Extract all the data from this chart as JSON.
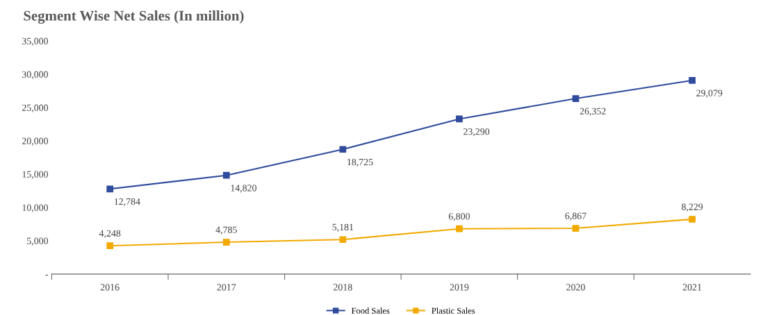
{
  "chart_data": {
    "type": "line",
    "title": "Segment Wise Net Sales (In million)",
    "categories": [
      "2016",
      "2017",
      "2018",
      "2019",
      "2020",
      "2021"
    ],
    "series": [
      {
        "name": "Food Sales",
        "color": "#2f4b9c",
        "values": [
          12784,
          14820,
          18725,
          23290,
          26352,
          29079
        ],
        "value_labels": [
          "12,784",
          "14,820",
          "18,725",
          "23,290",
          "26,352",
          "29,079"
        ]
      },
      {
        "name": "Plastic Sales",
        "color": "#f2a900",
        "values": [
          4248,
          4785,
          5181,
          6800,
          6867,
          8229
        ],
        "value_labels": [
          "4,248",
          "4,785",
          "5,181",
          "6,800",
          "6,867",
          "8,229"
        ]
      }
    ],
    "ylim": [
      0,
      35000
    ],
    "yticks": [
      {
        "value": 0,
        "label": "-"
      },
      {
        "value": 5000,
        "label": "5,000"
      },
      {
        "value": 10000,
        "label": "10,000"
      },
      {
        "value": 15000,
        "label": "15,000"
      },
      {
        "value": 20000,
        "label": "20,000"
      },
      {
        "value": 25000,
        "label": "25,000"
      },
      {
        "value": 30000,
        "label": "30,000"
      },
      {
        "value": 35000,
        "label": "35,000"
      }
    ],
    "marker": "square",
    "line_style": "solid",
    "grid": false,
    "legend": "bottom"
  }
}
